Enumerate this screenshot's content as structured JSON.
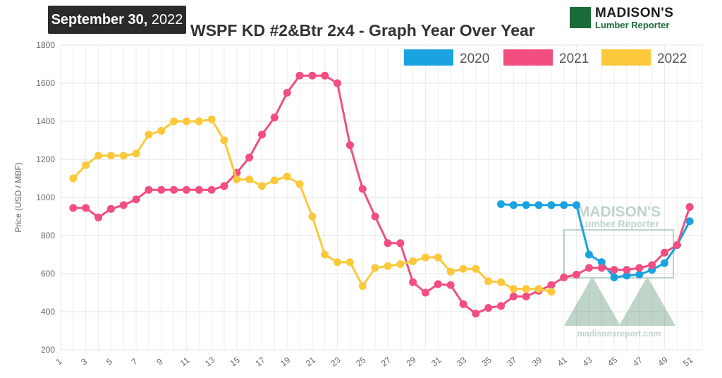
{
  "date_badge": {
    "bold": "September 30,",
    "year": "2022"
  },
  "logo": {
    "line1": "MADISON'S",
    "line2": "Lumber Reporter"
  },
  "watermark": {
    "line1": "MADISON'S",
    "line2": "Lumber Reporter",
    "url": "madisonsreport.com"
  },
  "colors": {
    "2020": "#1aa3e0",
    "2021": "#f24e7f",
    "2022": "#fbc93b",
    "watermark": "#1b6b3a"
  },
  "chart_data": {
    "type": "line",
    "title": "WSPF KD #2&Btr 2x4 - Graph Year Over Year",
    "xlabel": "",
    "ylabel": "Price (USD / MBF)",
    "xlim": [
      1,
      52
    ],
    "ylim": [
      200,
      1800
    ],
    "y_ticks": [
      200,
      400,
      600,
      800,
      1000,
      1200,
      1400,
      1600,
      1800
    ],
    "x_tick_labels": [
      1,
      3,
      5,
      7,
      9,
      11,
      13,
      15,
      17,
      19,
      21,
      23,
      25,
      27,
      29,
      31,
      33,
      35,
      37,
      39,
      41,
      43,
      45,
      47,
      49,
      51
    ],
    "grid": true,
    "legend_position": "top-right",
    "series": [
      {
        "name": "2020",
        "points": [
          [
            36,
            965
          ],
          [
            37,
            960
          ],
          [
            38,
            960
          ],
          [
            39,
            960
          ],
          [
            40,
            960
          ],
          [
            41,
            960
          ],
          [
            42,
            960
          ],
          [
            43,
            700
          ],
          [
            44,
            660
          ],
          [
            45,
            580
          ],
          [
            46,
            590
          ],
          [
            47,
            595
          ],
          [
            48,
            620
          ],
          [
            49,
            655
          ],
          [
            50,
            750
          ],
          [
            51,
            875
          ]
        ]
      },
      {
        "name": "2021",
        "points": [
          [
            2,
            945
          ],
          [
            3,
            945
          ],
          [
            4,
            895
          ],
          [
            5,
            940
          ],
          [
            6,
            960
          ],
          [
            7,
            990
          ],
          [
            8,
            1040
          ],
          [
            9,
            1040
          ],
          [
            10,
            1040
          ],
          [
            11,
            1040
          ],
          [
            12,
            1040
          ],
          [
            13,
            1040
          ],
          [
            14,
            1060
          ],
          [
            15,
            1130
          ],
          [
            16,
            1210
          ],
          [
            17,
            1330
          ],
          [
            18,
            1420
          ],
          [
            19,
            1550
          ],
          [
            20,
            1640
          ],
          [
            21,
            1640
          ],
          [
            22,
            1640
          ],
          [
            23,
            1600
          ],
          [
            24,
            1275
          ],
          [
            25,
            1045
          ],
          [
            26,
            900
          ],
          [
            27,
            760
          ],
          [
            28,
            760
          ],
          [
            29,
            555
          ],
          [
            30,
            500
          ],
          [
            31,
            545
          ],
          [
            32,
            540
          ],
          [
            33,
            440
          ],
          [
            34,
            390
          ],
          [
            35,
            420
          ],
          [
            36,
            430
          ],
          [
            37,
            480
          ],
          [
            38,
            480
          ],
          [
            39,
            510
          ],
          [
            40,
            540
          ],
          [
            41,
            580
          ],
          [
            42,
            595
          ],
          [
            43,
            630
          ],
          [
            44,
            630
          ],
          [
            45,
            620
          ],
          [
            46,
            620
          ],
          [
            47,
            630
          ],
          [
            48,
            645
          ],
          [
            49,
            710
          ],
          [
            50,
            750
          ],
          [
            51,
            950
          ]
        ]
      },
      {
        "name": "2022",
        "points": [
          [
            2,
            1100
          ],
          [
            3,
            1170
          ],
          [
            4,
            1220
          ],
          [
            5,
            1220
          ],
          [
            6,
            1220
          ],
          [
            7,
            1230
          ],
          [
            8,
            1330
          ],
          [
            9,
            1350
          ],
          [
            10,
            1400
          ],
          [
            11,
            1400
          ],
          [
            12,
            1400
          ],
          [
            13,
            1410
          ],
          [
            14,
            1300
          ],
          [
            15,
            1095
          ],
          [
            16,
            1095
          ],
          [
            17,
            1060
          ],
          [
            18,
            1090
          ],
          [
            19,
            1110
          ],
          [
            20,
            1070
          ],
          [
            21,
            900
          ],
          [
            22,
            700
          ],
          [
            23,
            660
          ],
          [
            24,
            660
          ],
          [
            25,
            535
          ],
          [
            26,
            630
          ],
          [
            27,
            640
          ],
          [
            28,
            650
          ],
          [
            29,
            665
          ],
          [
            30,
            685
          ],
          [
            31,
            685
          ],
          [
            32,
            610
          ],
          [
            33,
            625
          ],
          [
            34,
            625
          ],
          [
            35,
            560
          ],
          [
            36,
            555
          ],
          [
            37,
            520
          ],
          [
            38,
            520
          ],
          [
            39,
            520
          ],
          [
            40,
            505
          ]
        ]
      }
    ]
  }
}
